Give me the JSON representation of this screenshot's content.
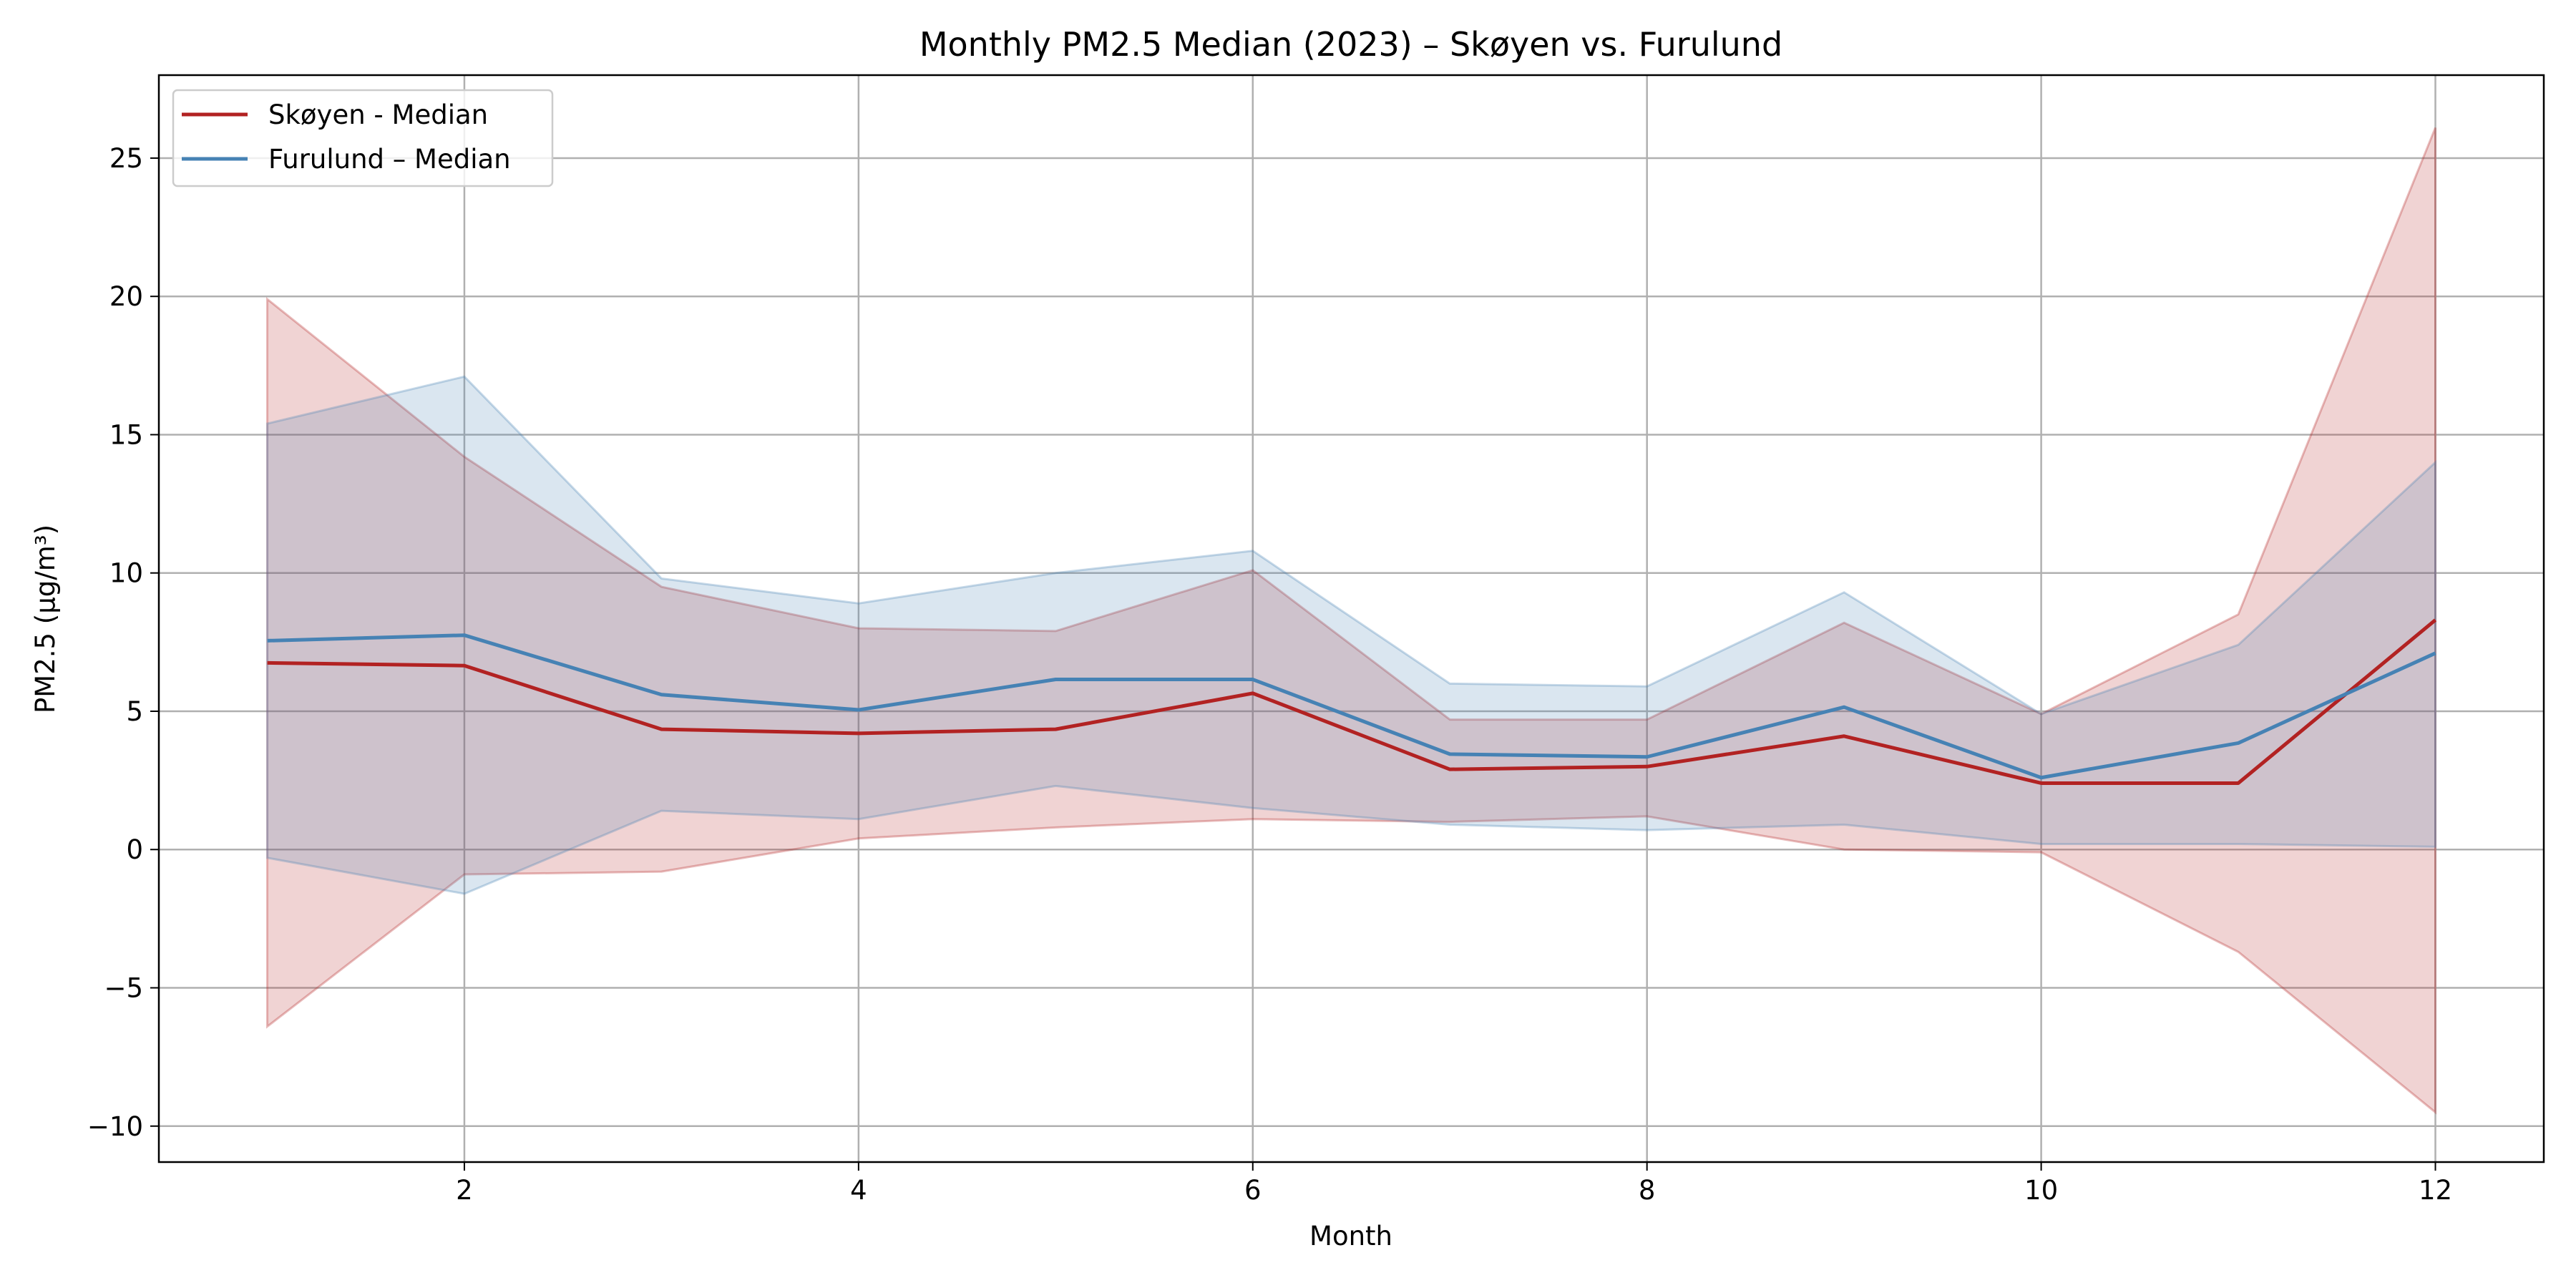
{
  "chart_data": {
    "type": "line",
    "title": "Monthly PM2.5 Median (2023) – Skøyen vs. Furulund",
    "xlabel": "Month",
    "ylabel": "PM2.5 (µg/m³)",
    "x": [
      1,
      2,
      3,
      4,
      5,
      6,
      7,
      8,
      9,
      10,
      11,
      12
    ],
    "xlim": [
      0.45,
      12.55
    ],
    "ylim": [
      -11.3,
      28.0
    ],
    "xticks": [
      2,
      4,
      6,
      8,
      10,
      12
    ],
    "xtick_labels": [
      "2",
      "4",
      "6",
      "8",
      "10",
      "12"
    ],
    "yticks": [
      -10,
      -5,
      0,
      5,
      10,
      15,
      20,
      25
    ],
    "ytick_labels": [
      "−10",
      "−5",
      "0",
      "5",
      "10",
      "15",
      "20",
      "25"
    ],
    "grid": true,
    "legend_position": "upper-left",
    "series": [
      {
        "name": "Skøyen - Median",
        "color": "#b22222",
        "values": [
          6.75,
          6.65,
          4.35,
          4.2,
          4.35,
          5.65,
          2.9,
          3.0,
          4.1,
          2.4,
          2.4,
          8.3
        ],
        "band_lower": [
          -6.4,
          -0.9,
          -0.8,
          0.4,
          0.8,
          1.1,
          1.0,
          1.2,
          0.0,
          -0.1,
          -3.7,
          -9.5
        ],
        "band_upper": [
          19.9,
          14.2,
          9.5,
          8.0,
          7.9,
          10.1,
          4.7,
          4.7,
          8.2,
          4.9,
          8.5,
          26.1
        ]
      },
      {
        "name": "Furulund – Median",
        "color": "#4682b4",
        "values": [
          7.55,
          7.75,
          5.6,
          5.05,
          6.15,
          6.15,
          3.45,
          3.35,
          5.15,
          2.6,
          3.85,
          7.1
        ],
        "band_lower": [
          -0.3,
          -1.6,
          1.4,
          1.1,
          2.3,
          1.5,
          0.9,
          0.7,
          0.9,
          0.2,
          0.2,
          0.1
        ],
        "band_upper": [
          15.4,
          17.1,
          9.8,
          8.9,
          10.0,
          10.8,
          6.0,
          5.9,
          9.3,
          4.9,
          7.4,
          14.0
        ]
      }
    ]
  }
}
